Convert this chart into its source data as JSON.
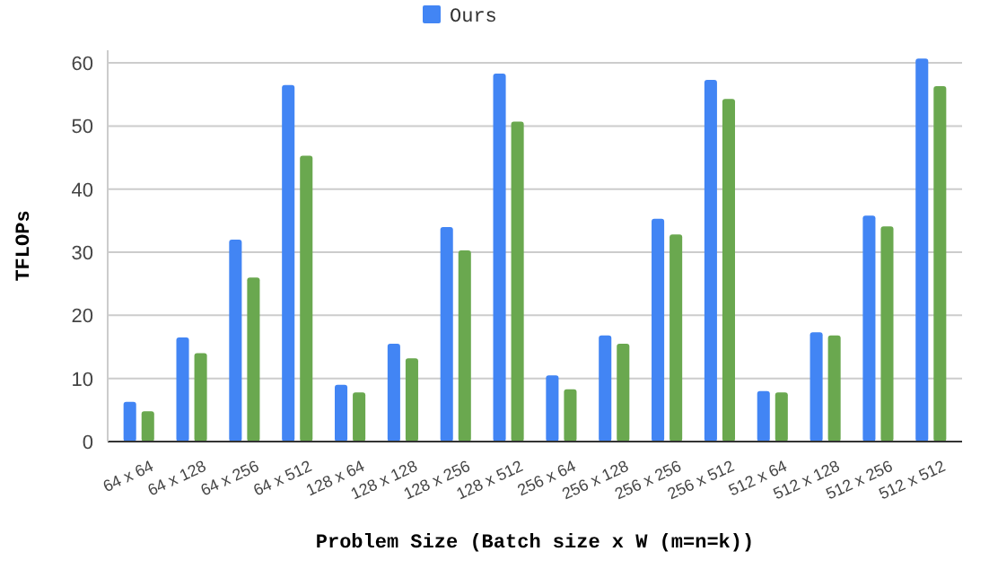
{
  "chart_data": {
    "type": "bar",
    "xlabel": "Problem Size (Batch size x W (m=n=k))",
    "ylabel": "TFLOPs",
    "categories": [
      "64 x 64",
      "64 x 128",
      "64 x 256",
      "64 x 512",
      "128 x 64",
      "128 x 128",
      "128 x 256",
      "128 x 512",
      "256 x 64",
      "256 x 128",
      "256 x 256",
      "256 x 512",
      "512 x 64",
      "512 x 128",
      "512 x 256",
      "512 x 512"
    ],
    "series": [
      {
        "name": "Ours",
        "color": "#4285f4",
        "values": [
          6.3,
          16.5,
          32,
          56.5,
          9,
          15.5,
          34,
          58.3,
          10.5,
          16.8,
          35.3,
          57.3,
          8,
          17.3,
          35.8,
          60.7
        ]
      },
      {
        "color": "#6aa84f",
        "values": [
          4.8,
          14,
          26,
          45.3,
          7.8,
          13.2,
          30.3,
          50.7,
          8.3,
          15.5,
          32.8,
          54.3,
          7.8,
          16.8,
          34.1,
          56.3
        ]
      }
    ],
    "ylim": [
      0,
      62
    ],
    "yticks": [
      0,
      10,
      20,
      30,
      40,
      50,
      60
    ],
    "grid": "y",
    "legend": "top"
  }
}
